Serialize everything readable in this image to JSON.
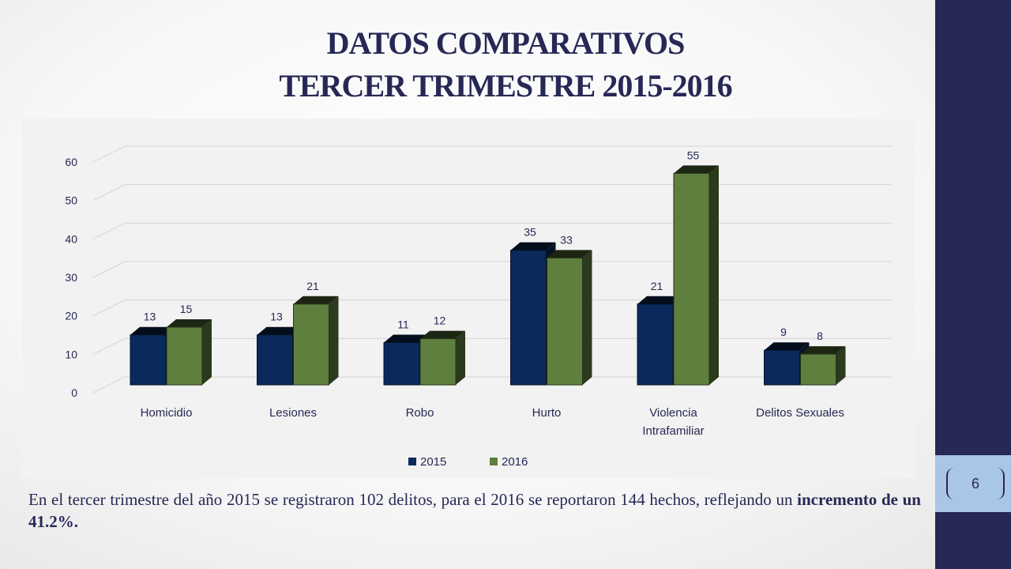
{
  "title": {
    "line1": "DATOS COMPARATIVOS",
    "line2": "TERCER TRIMESTRE 2015-2016"
  },
  "slide_number": "6",
  "summary": {
    "text": "En el tercer trimestre del año 2015 se registraron 102 delitos, para el 2016 se reportaron 144 hechos, reflejando un ",
    "bold": "incremento de un 41.2%."
  },
  "colors": {
    "series_2015": "#0a2a5c",
    "series_2016": "#5f7f3e",
    "sidebar": "#272855",
    "number_box": "#a9c6e8"
  },
  "chart_data": {
    "type": "bar",
    "title": "",
    "xlabel": "",
    "ylabel": "",
    "ylim": [
      0,
      60
    ],
    "yticks": [
      0,
      10,
      20,
      30,
      40,
      50,
      60
    ],
    "categories": [
      "Homicidio",
      "Lesiones",
      "Robo",
      "Hurto",
      "Violencia Intrafamiliar",
      "Delitos Sexuales"
    ],
    "series": [
      {
        "name": "2015",
        "values": [
          13,
          13,
          11,
          35,
          21,
          9
        ]
      },
      {
        "name": "2016",
        "values": [
          15,
          21,
          12,
          33,
          55,
          8
        ]
      }
    ],
    "grid": true,
    "legend": "bottom",
    "style": "3d-clustered-column"
  }
}
